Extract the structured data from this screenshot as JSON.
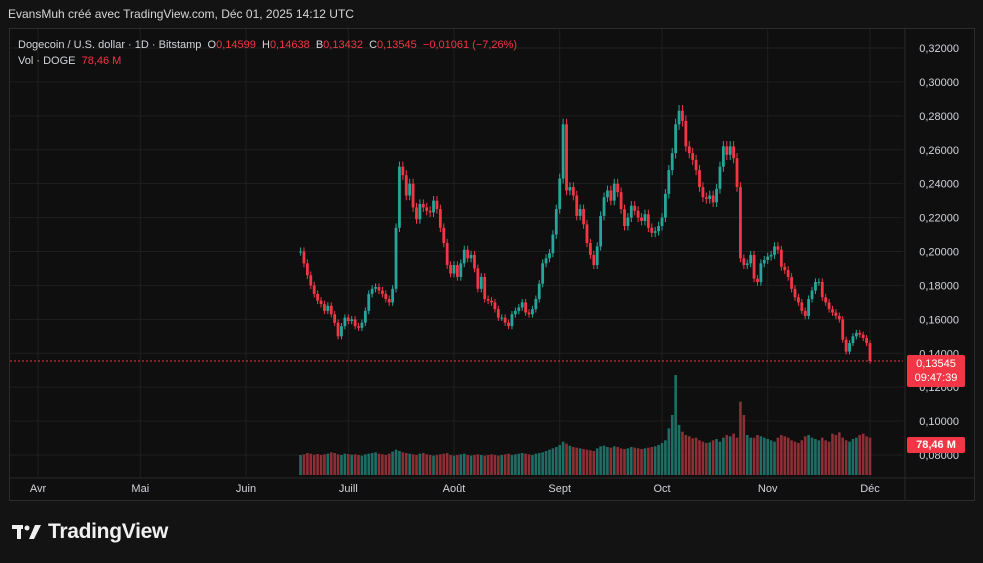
{
  "caption": "EvansMuh créé avec TradingView.com, Déc 01, 2025 14:12 UTC",
  "legend": {
    "symbol": "Dogecoin / U.S. dollar · 1D · Bitstamp",
    "open_label": "O",
    "open": "0,14599",
    "high_label": "H",
    "high": "0,14638",
    "low_label": "B",
    "low": "0,13432",
    "close_label": "C",
    "close": "0,13545",
    "change": "−0,01061 (−7,26%)",
    "vol_label": "Vol · DOGE",
    "vol_value": "78,46 M"
  },
  "price_tag": {
    "price": "0,13545",
    "countdown": "09:47:39"
  },
  "volume_tag": "78,46 M",
  "brand": {
    "name": "TradingView"
  },
  "colors": {
    "up": "#26a69a",
    "down": "#f23645",
    "up_volume": "#1f6e66",
    "down_volume": "#8e2f35",
    "grid": "#1f1f1f",
    "axis_text": "#d1d4dc"
  },
  "chart_data": {
    "type": "candlestick",
    "y_axis": {
      "ticks": [
        "0,32000",
        "0,30000",
        "0,28000",
        "0,26000",
        "0,24000",
        "0,22000",
        "0,20000",
        "0,18000",
        "0,16000",
        "0,14000",
        "0,12000",
        "0,10000",
        "0,08000"
      ],
      "ylim": [
        0.07,
        0.325
      ]
    },
    "x_axis": {
      "ticks": [
        {
          "label": "Avr",
          "date": "2025-04-01"
        },
        {
          "label": "Mai",
          "date": "2025-05-01"
        },
        {
          "label": "Juin",
          "date": "2025-06-01"
        },
        {
          "label": "Juill",
          "date": "2025-07-01"
        },
        {
          "label": "Août",
          "date": "2025-08-01"
        },
        {
          "label": "Sept",
          "date": "2025-09-01"
        },
        {
          "label": "Oct",
          "date": "2025-10-01"
        },
        {
          "label": "Nov",
          "date": "2025-11-01"
        },
        {
          "label": "Déc",
          "date": "2025-12-01"
        }
      ]
    },
    "start_date": "2025-03-01",
    "last_price": 0.13545,
    "closes": [
      0.2,
      0.193,
      0.186,
      0.18,
      0.175,
      0.171,
      0.169,
      0.165,
      0.168,
      0.163,
      0.158,
      0.15,
      0.156,
      0.161,
      0.159,
      0.16,
      0.156,
      0.155,
      0.158,
      0.165,
      0.175,
      0.178,
      0.179,
      0.177,
      0.175,
      0.172,
      0.17,
      0.178,
      0.214,
      0.25,
      0.245,
      0.233,
      0.24,
      0.226,
      0.219,
      0.228,
      0.226,
      0.224,
      0.223,
      0.23,
      0.225,
      0.214,
      0.205,
      0.192,
      0.187,
      0.192,
      0.185,
      0.193,
      0.201,
      0.196,
      0.198,
      0.19,
      0.178,
      0.185,
      0.172,
      0.171,
      0.17,
      0.166,
      0.161,
      0.161,
      0.158,
      0.156,
      0.163,
      0.165,
      0.167,
      0.17,
      0.164,
      0.163,
      0.166,
      0.172,
      0.181,
      0.193,
      0.196,
      0.199,
      0.21,
      0.225,
      0.243,
      0.275,
      0.236,
      0.238,
      0.233,
      0.221,
      0.225,
      0.216,
      0.205,
      0.198,
      0.192,
      0.203,
      0.221,
      0.232,
      0.236,
      0.23,
      0.24,
      0.235,
      0.225,
      0.215,
      0.22,
      0.227,
      0.224,
      0.22,
      0.218,
      0.222,
      0.214,
      0.211,
      0.212,
      0.215,
      0.22,
      0.234,
      0.248,
      0.258,
      0.275,
      0.283,
      0.277,
      0.262,
      0.258,
      0.254,
      0.248,
      0.238,
      0.232,
      0.231,
      0.233,
      0.229,
      0.237,
      0.25,
      0.262,
      0.257,
      0.262,
      0.255,
      0.238,
      0.196,
      0.192,
      0.193,
      0.198,
      0.184,
      0.182,
      0.193,
      0.195,
      0.197,
      0.198,
      0.203,
      0.201,
      0.191,
      0.189,
      0.185,
      0.178,
      0.173,
      0.17,
      0.165,
      0.162,
      0.172,
      0.177,
      0.182,
      0.182,
      0.173,
      0.17,
      0.166,
      0.164,
      0.162,
      0.16,
      0.148,
      0.141,
      0.146,
      0.15,
      0.152,
      0.151,
      0.149,
      0.146,
      0.13545
    ],
    "volumes_millions": [
      300,
      310,
      330,
      320,
      305,
      315,
      300,
      310,
      320,
      340,
      330,
      310,
      300,
      320,
      315,
      305,
      310,
      300,
      290,
      310,
      320,
      330,
      340,
      320,
      310,
      300,
      320,
      350,
      380,
      360,
      340,
      330,
      320,
      310,
      300,
      320,
      330,
      310,
      300,
      290,
      300,
      310,
      320,
      330,
      300,
      290,
      300,
      310,
      320,
      300,
      290,
      300,
      310,
      300,
      290,
      300,
      310,
      300,
      290,
      300,
      310,
      320,
      300,
      310,
      320,
      330,
      320,
      310,
      300,
      320,
      330,
      340,
      360,
      380,
      400,
      420,
      450,
      500,
      470,
      440,
      420,
      410,
      400,
      390,
      380,
      370,
      360,
      400,
      430,
      440,
      420,
      410,
      430,
      420,
      400,
      390,
      400,
      420,
      410,
      400,
      390,
      400,
      410,
      420,
      430,
      450,
      480,
      520,
      700,
      900,
      1500,
      750,
      650,
      600,
      580,
      550,
      560,
      520,
      500,
      480,
      490,
      520,
      540,
      500,
      560,
      600,
      580,
      620,
      560,
      1100,
      900,
      600,
      560,
      560,
      600,
      580,
      560,
      540,
      520,
      500,
      560,
      600,
      580,
      560,
      520,
      500,
      480,
      520,
      580,
      600,
      560,
      540,
      520,
      560,
      520,
      500,
      620,
      600,
      640,
      560,
      520,
      500,
      540,
      560,
      600,
      620,
      580,
      560,
      78.46
    ]
  }
}
